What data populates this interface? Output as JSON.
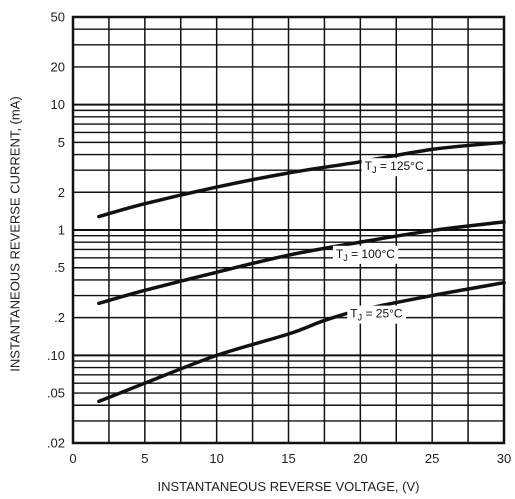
{
  "chart_data": {
    "type": "line",
    "xlabel": "INSTANTANEOUS REVERSE VOLTAGE, (V)",
    "ylabel": "INSTANTANEOUS REVERSE CURRENT, (mA)",
    "xlim": [
      0,
      30
    ],
    "ylim": [
      0.02,
      50
    ],
    "y_scale": "log",
    "grid": true,
    "legend": "labels on curves",
    "x_ticks": [
      0,
      5,
      10,
      15,
      20,
      25,
      30
    ],
    "x_tick_labels": [
      "0",
      "5",
      "10",
      "15",
      "20",
      "25",
      "30"
    ],
    "y_ticks": [
      0.02,
      0.05,
      0.1,
      0.2,
      0.5,
      1,
      2,
      5,
      10,
      20,
      50
    ],
    "y_tick_labels": [
      ".02",
      ".05",
      ".10",
      ".2",
      ".5",
      "1",
      "2",
      "5",
      "10",
      "20",
      "50"
    ],
    "series": [
      {
        "name": "TJ = 125°C",
        "label_main": "T",
        "label_sub": "J",
        "label_rest": " = 125°C",
        "label_at": [
          20.3,
          3.0
        ],
        "x": [
          1.8,
          5,
          10,
          15,
          20,
          25,
          30
        ],
        "y": [
          1.28,
          1.62,
          2.2,
          2.85,
          3.5,
          4.4,
          5.0
        ]
      },
      {
        "name": "TJ = 100°C",
        "label_main": "T",
        "label_sub": "J",
        "label_rest": " = 100°C",
        "label_at": [
          18.3,
          0.6
        ],
        "x": [
          1.8,
          5,
          10,
          15,
          20,
          25,
          30
        ],
        "y": [
          0.26,
          0.33,
          0.46,
          0.63,
          0.8,
          0.99,
          1.16
        ]
      },
      {
        "name": "TJ = 25°C",
        "label_main": "T",
        "label_sub": "J",
        "label_rest": " = 25°C",
        "label_at": [
          19.3,
          0.2
        ],
        "x": [
          1.8,
          5,
          10,
          15,
          17.5,
          20,
          25,
          30
        ],
        "y": [
          0.043,
          0.06,
          0.1,
          0.148,
          0.19,
          0.23,
          0.3,
          0.38
        ]
      }
    ]
  }
}
